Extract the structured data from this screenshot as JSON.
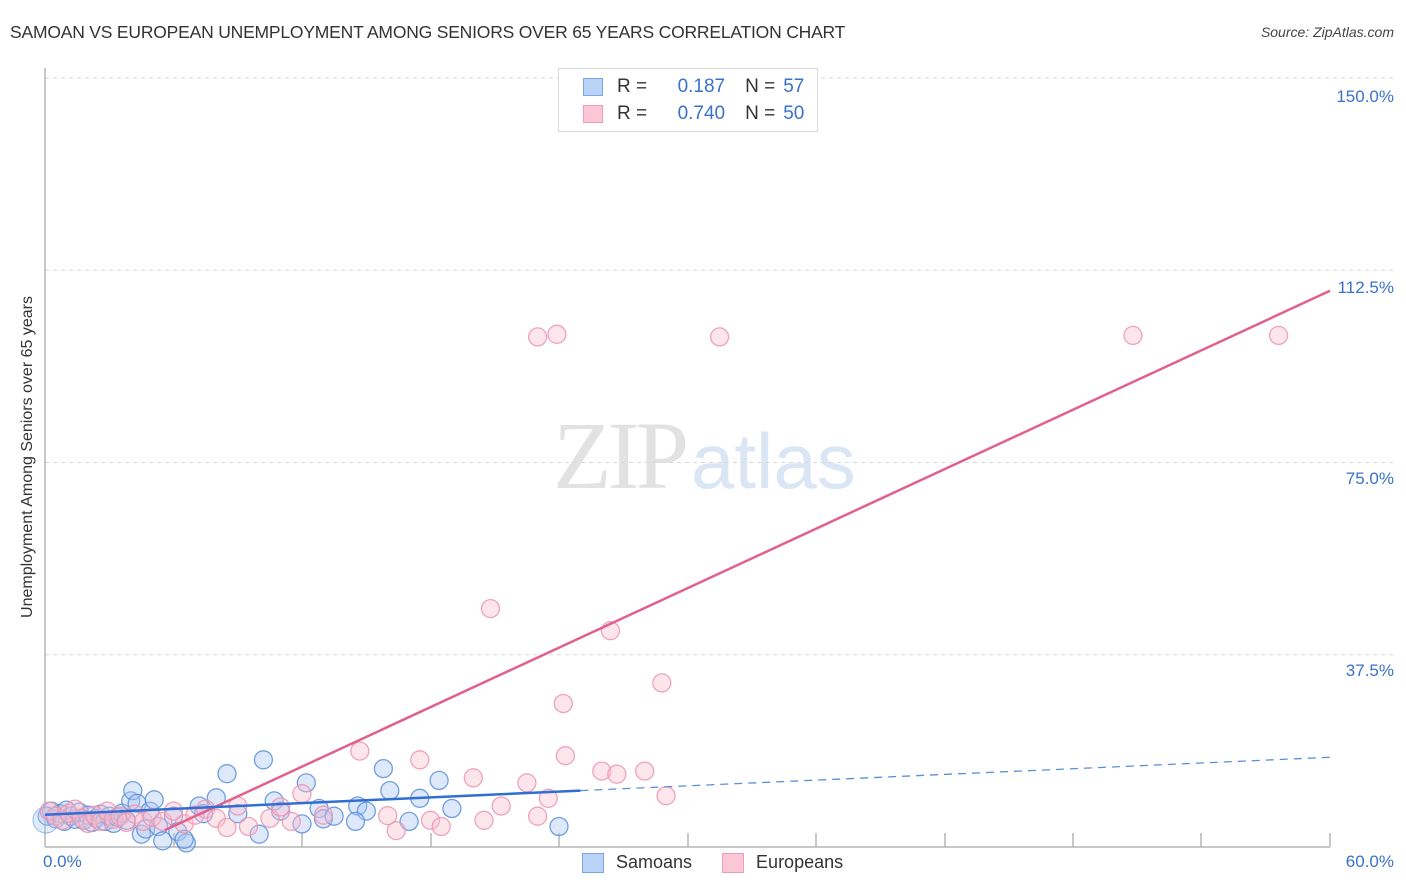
{
  "header": {
    "title": "SAMOAN VS EUROPEAN UNEMPLOYMENT AMONG SENIORS OVER 65 YEARS CORRELATION CHART",
    "source": "Source: ZipAtlas.com"
  },
  "watermark": {
    "zip": "ZIP",
    "atlas": "atlas"
  },
  "legend": {
    "r_label": "R =",
    "n_label": "N =",
    "series": [
      {
        "name": "Samoans",
        "r": "0.187",
        "n": "57",
        "color": "#7aa6e6"
      },
      {
        "name": "Europeans",
        "r": "0.740",
        "n": "50",
        "color": "#ee9db6"
      }
    ]
  },
  "axes": {
    "ylabel": "Unemployment Among Seniors over 65 years",
    "yticks": [
      "150.0%",
      "112.5%",
      "75.0%",
      "37.5%"
    ],
    "xticks": [
      "0.0%",
      "60.0%"
    ]
  },
  "chart_data": {
    "type": "scatter",
    "title": "SAMOAN VS EUROPEAN UNEMPLOYMENT AMONG SENIORS OVER 65 YEARS CORRELATION CHART",
    "xlabel": "",
    "ylabel": "Unemployment Among Seniors over 65 years",
    "xlim": [
      0,
      60
    ],
    "ylim": [
      0,
      150
    ],
    "x_tick_labels": [
      "0.0%",
      "60.0%"
    ],
    "y_tick_labels": [
      "37.5%",
      "75.0%",
      "112.5%",
      "150.0%"
    ],
    "grid": "horizontal dashed",
    "legend_position": "top-center",
    "series": [
      {
        "name": "Samoans",
        "color": "#6f9fe3",
        "r": 0.187,
        "n": 57,
        "trend": {
          "x0": 0,
          "y0": 6.3,
          "x1": 25,
          "y1": 11.0,
          "dashed_to": {
            "x": 60,
            "y": 17.5
          }
        },
        "points": [
          [
            0.1,
            6.0
          ],
          [
            0.3,
            7.0
          ],
          [
            0.5,
            5.5
          ],
          [
            0.7,
            6.5
          ],
          [
            0.9,
            5.0
          ],
          [
            1.0,
            7.2
          ],
          [
            1.2,
            6.0
          ],
          [
            1.4,
            5.4
          ],
          [
            1.6,
            6.8
          ],
          [
            1.8,
            5.2
          ],
          [
            2.0,
            6.2
          ],
          [
            2.2,
            4.8
          ],
          [
            2.4,
            5.6
          ],
          [
            2.6,
            6.4
          ],
          [
            2.8,
            5.0
          ],
          [
            3.0,
            6.0
          ],
          [
            3.2,
            4.6
          ],
          [
            3.4,
            5.8
          ],
          [
            3.6,
            6.6
          ],
          [
            3.8,
            5.2
          ],
          [
            4.0,
            9.0
          ],
          [
            4.1,
            11.0
          ],
          [
            4.3,
            8.5
          ],
          [
            4.5,
            2.5
          ],
          [
            4.7,
            3.5
          ],
          [
            4.9,
            7.0
          ],
          [
            5.1,
            9.2
          ],
          [
            5.3,
            4.0
          ],
          [
            5.5,
            1.2
          ],
          [
            6.0,
            6.0
          ],
          [
            6.2,
            3.0
          ],
          [
            6.6,
            0.8
          ],
          [
            6.5,
            1.5
          ],
          [
            7.2,
            8.0
          ],
          [
            7.4,
            6.5
          ],
          [
            8.0,
            9.6
          ],
          [
            8.5,
            14.3
          ],
          [
            9.0,
            6.5
          ],
          [
            10.0,
            2.5
          ],
          [
            10.2,
            17.0
          ],
          [
            10.7,
            9.0
          ],
          [
            11.0,
            7.0
          ],
          [
            12.0,
            4.5
          ],
          [
            12.2,
            12.5
          ],
          [
            12.8,
            7.5
          ],
          [
            13.0,
            5.5
          ],
          [
            14.6,
            8.0
          ],
          [
            15.0,
            7.0
          ],
          [
            14.5,
            5.0
          ],
          [
            15.8,
            15.3
          ],
          [
            16.1,
            11.0
          ],
          [
            17.0,
            5.0
          ],
          [
            18.4,
            13.0
          ],
          [
            19.0,
            7.5
          ],
          [
            24.0,
            4.0
          ],
          [
            17.5,
            9.5
          ],
          [
            13.5,
            6.0
          ]
        ]
      },
      {
        "name": "Europeans",
        "color": "#ee9db6",
        "r": 0.74,
        "n": 50,
        "trend": {
          "x0": 5.6,
          "y0": 3.3,
          "x1": 60,
          "y1": 108.5
        },
        "points": [
          [
            0.2,
            7.0
          ],
          [
            0.5,
            6.0
          ],
          [
            0.8,
            5.2
          ],
          [
            1.1,
            6.6
          ],
          [
            1.4,
            7.4
          ],
          [
            1.7,
            5.6
          ],
          [
            2.0,
            4.6
          ],
          [
            2.3,
            6.2
          ],
          [
            2.6,
            5.0
          ],
          [
            2.9,
            7.0
          ],
          [
            3.2,
            5.4
          ],
          [
            3.5,
            6.0
          ],
          [
            3.8,
            4.8
          ],
          [
            4.2,
            6.4
          ],
          [
            4.6,
            5.0
          ],
          [
            5.0,
            5.8
          ],
          [
            5.5,
            5.0
          ],
          [
            6.0,
            7.0
          ],
          [
            6.5,
            4.5
          ],
          [
            7.0,
            6.2
          ],
          [
            7.5,
            7.4
          ],
          [
            8.0,
            5.6
          ],
          [
            8.5,
            3.8
          ],
          [
            9.0,
            8.0
          ],
          [
            9.5,
            4.0
          ],
          [
            10.5,
            5.6
          ],
          [
            11.0,
            7.8
          ],
          [
            11.5,
            5.0
          ],
          [
            12.0,
            10.4
          ],
          [
            13.0,
            6.2
          ],
          [
            14.7,
            18.7
          ],
          [
            16.4,
            3.2
          ],
          [
            16.0,
            6.1
          ],
          [
            17.5,
            17.0
          ],
          [
            18.0,
            5.2
          ],
          [
            18.5,
            4.0
          ],
          [
            20.0,
            13.5
          ],
          [
            20.5,
            5.2
          ],
          [
            21.3,
            8.0
          ],
          [
            22.5,
            12.5
          ],
          [
            23.0,
            6.0
          ],
          [
            23.5,
            9.5
          ],
          [
            24.3,
            17.8
          ],
          [
            26.0,
            14.8
          ],
          [
            26.7,
            14.2
          ],
          [
            28.0,
            14.8
          ],
          [
            29.0,
            10.0
          ],
          [
            20.8,
            46.5
          ],
          [
            23.0,
            99.5
          ],
          [
            23.9,
            100.0
          ]
        ],
        "extra_points": [
          [
            26.4,
            42.2
          ],
          [
            24.2,
            28.0
          ],
          [
            28.8,
            32.0
          ],
          [
            31.5,
            99.5
          ],
          [
            50.8,
            99.8
          ],
          [
            57.6,
            99.8
          ]
        ]
      }
    ]
  }
}
